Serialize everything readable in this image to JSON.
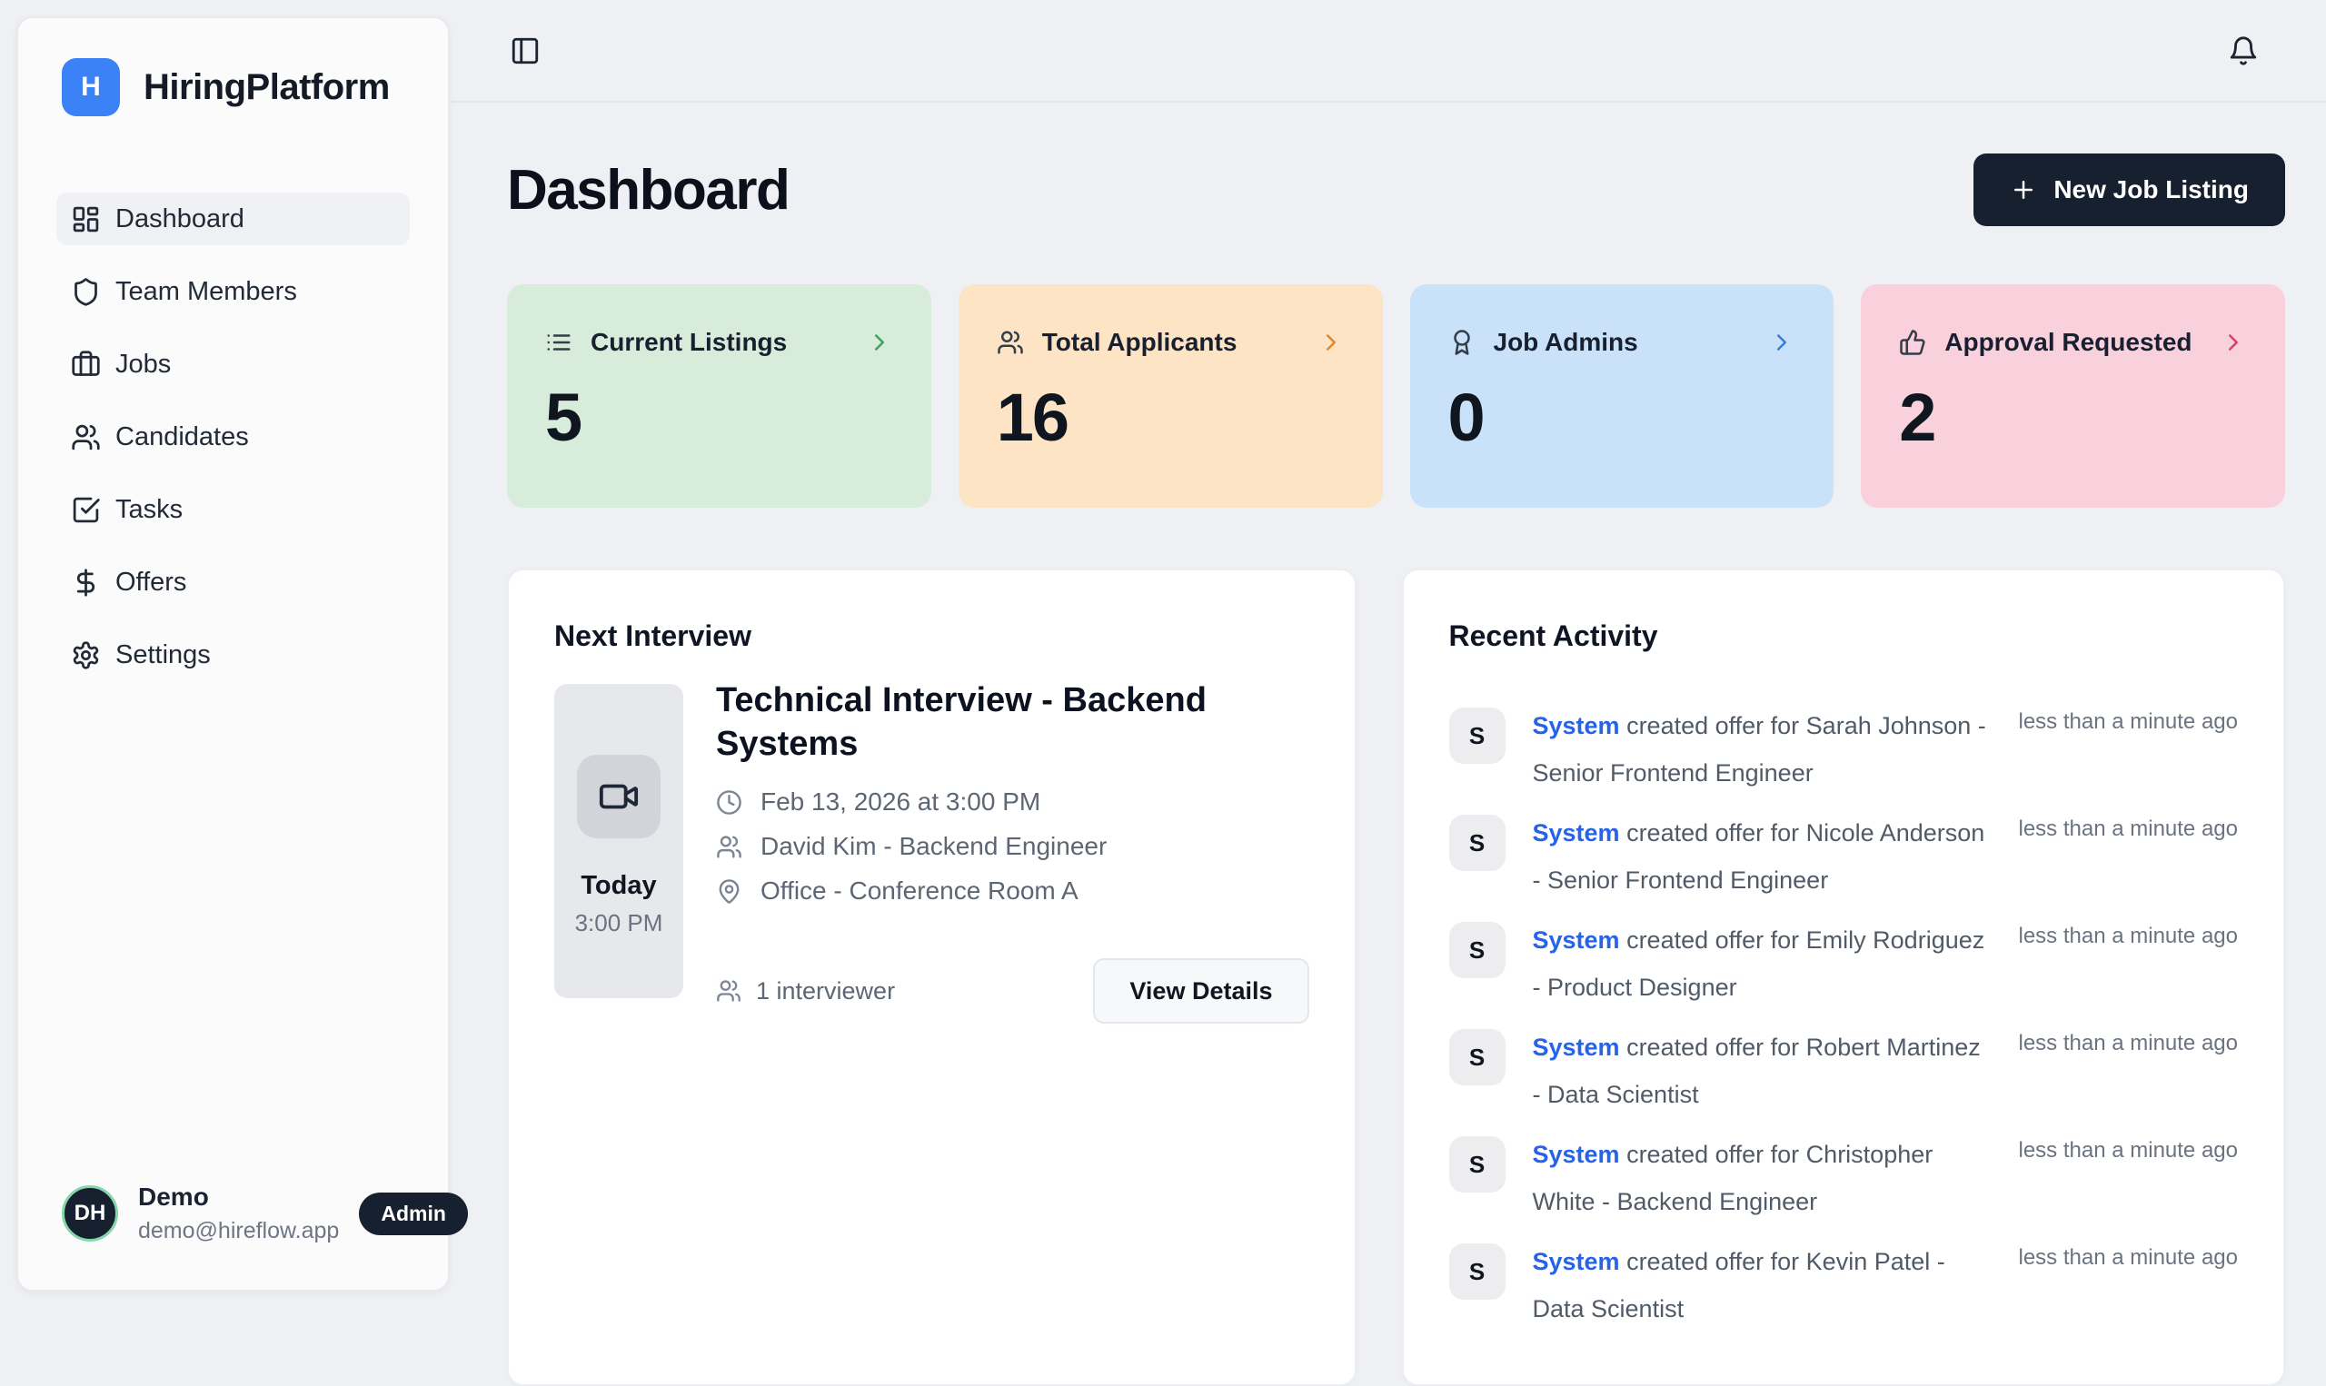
{
  "theme": {
    "page_bg": "#eef0f4",
    "primary_dark": "#16202e",
    "brand_blue": "#3b82f6",
    "link_blue": "#2563eb",
    "avatar_ring_green": "#86d6ac"
  },
  "app": {
    "logo_letter": "H",
    "name": "HiringPlatform"
  },
  "sidebar": {
    "items": [
      {
        "label": "Dashboard",
        "icon": "layout-dashboard",
        "active": true
      },
      {
        "label": "Team Members",
        "icon": "shield",
        "active": false
      },
      {
        "label": "Jobs",
        "icon": "briefcase",
        "active": false
      },
      {
        "label": "Candidates",
        "icon": "users",
        "active": false
      },
      {
        "label": "Tasks",
        "icon": "check-square",
        "active": false
      },
      {
        "label": "Offers",
        "icon": "dollar",
        "active": false
      },
      {
        "label": "Settings",
        "icon": "gear",
        "active": false
      }
    ],
    "user": {
      "initials": "DH",
      "name": "Demo",
      "email": "demo@hireflow.app",
      "role_badge": "Admin"
    }
  },
  "topbar": {
    "menu_icon": "panel-left",
    "notifications_icon": "bell"
  },
  "page": {
    "title": "Dashboard",
    "new_job_button": "New Job Listing",
    "new_job_icon": "plus"
  },
  "stats": [
    {
      "label": "Current Listings",
      "value": "5",
      "icon": "list",
      "bg": "#d7ecdb",
      "accent": "#44a05f"
    },
    {
      "label": "Total Applicants",
      "value": "16",
      "icon": "users",
      "bg": "#fce4c5",
      "accent": "#e2872e"
    },
    {
      "label": "Job Admins",
      "value": "0",
      "icon": "award",
      "bg": "#c9e2f9",
      "accent": "#347fd9"
    },
    {
      "label": "Approval Requested",
      "value": "2",
      "icon": "thumbs-up",
      "bg": "#f9d1dc",
      "accent": "#d84070"
    }
  ],
  "next_interview": {
    "section_title": "Next Interview",
    "tile": {
      "icon": "video",
      "day": "Today",
      "time": "3:00 PM"
    },
    "title": "Technical Interview - Backend Systems",
    "details": [
      {
        "icon": "clock",
        "text": "Feb 13, 2026 at 3:00 PM"
      },
      {
        "icon": "users",
        "text": "David Kim - Backend Engineer"
      },
      {
        "icon": "map-pin",
        "text": "Office - Conference Room A"
      }
    ],
    "footer": {
      "icon": "users",
      "text": "1 interviewer",
      "button_label": "View Details"
    }
  },
  "recent_activity": {
    "section_title": "Recent Activity",
    "items": [
      {
        "avatar": "S",
        "actor": "System",
        "message": "created offer for Sarah Johnson - Senior Frontend Engineer",
        "time": "less than a minute ago"
      },
      {
        "avatar": "S",
        "actor": "System",
        "message": "created offer for Nicole Anderson - Senior Frontend Engineer",
        "time": "less than a minute ago"
      },
      {
        "avatar": "S",
        "actor": "System",
        "message": "created offer for Emily Rodriguez - Product Designer",
        "time": "less than a minute ago"
      },
      {
        "avatar": "S",
        "actor": "System",
        "message": "created offer for Robert Martinez - Data Scientist",
        "time": "less than a minute ago"
      },
      {
        "avatar": "S",
        "actor": "System",
        "message": "created offer for Christopher White - Backend Engineer",
        "time": "less than a minute ago"
      },
      {
        "avatar": "S",
        "actor": "System",
        "message": "created offer for Kevin Patel - Data Scientist",
        "time": "less than a minute ago"
      }
    ]
  }
}
